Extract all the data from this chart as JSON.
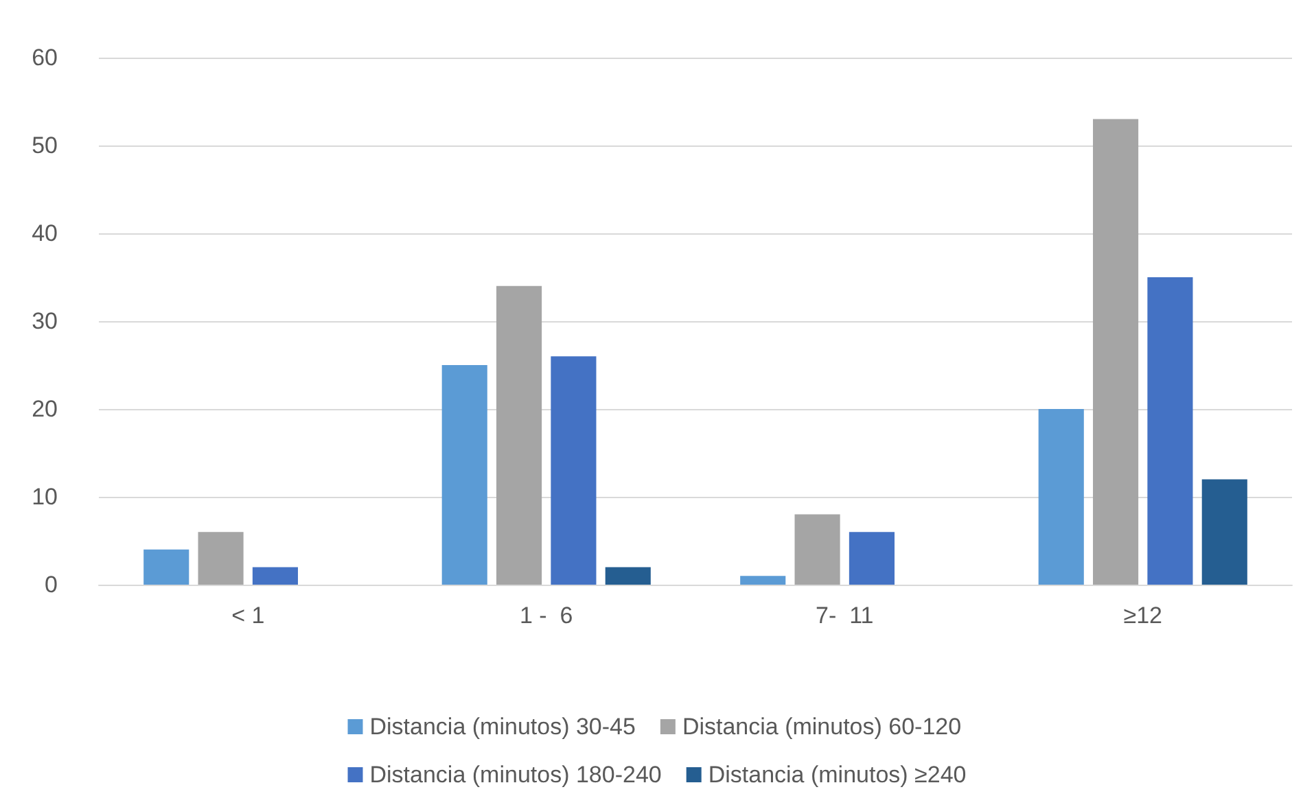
{
  "chart_data": {
    "type": "bar",
    "categories": [
      "< 1",
      "1 -  6",
      "7-  11",
      "≥12"
    ],
    "series": [
      {
        "name": "Distancia (minutos) 30-45",
        "color": "#5b9bd5",
        "values": [
          4,
          25,
          1,
          20
        ]
      },
      {
        "name": "Distancia (minutos) 60-120",
        "color": "#a5a5a5",
        "values": [
          6,
          34,
          8,
          53
        ]
      },
      {
        "name": "Distancia (minutos) 180-240",
        "color": "#4472c4",
        "values": [
          2,
          26,
          6,
          35
        ]
      },
      {
        "name": "Distancia (minutos) ≥240",
        "color": "#255e91",
        "values": [
          0,
          2,
          0,
          12
        ]
      }
    ],
    "ylim": [
      0,
      60
    ],
    "yticks": [
      0,
      10,
      20,
      30,
      40,
      50,
      60
    ],
    "grid": "y",
    "legend": "bottom"
  }
}
